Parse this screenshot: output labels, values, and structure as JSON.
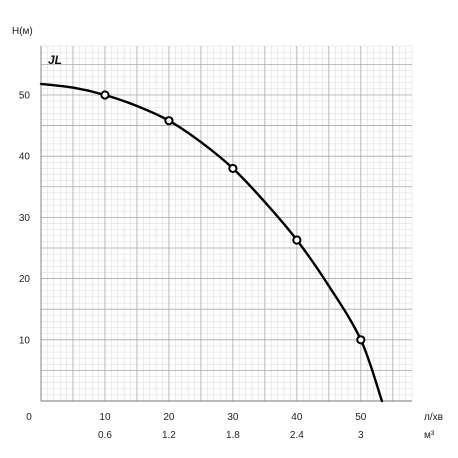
{
  "chart_data": {
    "type": "line",
    "ylabel": "H(м)",
    "xlabel": "л/хв",
    "xlabel_secondary": "м³",
    "x_ticks": [
      "0",
      "10",
      "20",
      "30",
      "40",
      "50"
    ],
    "x_ticks_secondary": [
      "0.6",
      "1.2",
      "1.8",
      "2.4",
      "3"
    ],
    "y_ticks": [
      "10",
      "20",
      "30",
      "40",
      "50"
    ],
    "xlim": [
      0,
      58
    ],
    "ylim": [
      0,
      58
    ],
    "grid": true,
    "series": [
      {
        "name": "JL",
        "curve": [
          [
            0,
            51.8
          ],
          [
            5,
            51.2
          ],
          [
            10,
            50
          ],
          [
            15,
            48.2
          ],
          [
            20,
            45.8
          ],
          [
            25,
            42.3
          ],
          [
            30,
            38
          ],
          [
            35,
            32.5
          ],
          [
            40,
            26.3
          ],
          [
            45,
            18.8
          ],
          [
            50,
            10
          ],
          [
            53.3,
            0
          ]
        ],
        "markers": [
          [
            10,
            50
          ],
          [
            20,
            45.8
          ],
          [
            30,
            38
          ],
          [
            40,
            26.3
          ],
          [
            50,
            10
          ]
        ]
      }
    ],
    "colors": {
      "grid_minor": "#d8d8d8",
      "grid_major": "#a8a8a8",
      "line": "#000000"
    }
  }
}
